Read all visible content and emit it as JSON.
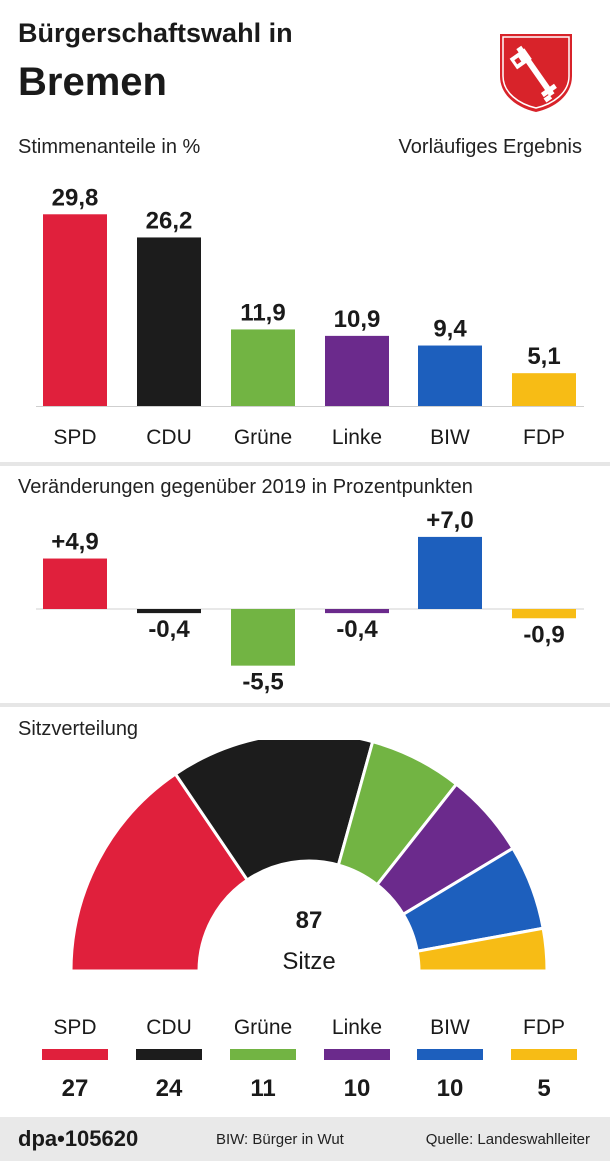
{
  "header": {
    "title_line1": "Bürgerschaftswahl in",
    "title_line2": "Bremen",
    "crest": "bremen-coat-of-arms-icon",
    "subtitle_left": "Stimmenanteile in %",
    "subtitle_right": "Vorläufiges Ergebnis"
  },
  "changes_title": "Veränderungen gegenüber 2019 in Prozentpunkten",
  "seats_title": "Sitzverteilung",
  "colors": {
    "SPD": "#e0203c",
    "CDU": "#1c1c1c",
    "Grüne": "#72b443",
    "Linke": "#6b2a8c",
    "BIW": "#1d5fbd",
    "FDP": "#f7bc15",
    "crest_red": "#d8232a"
  },
  "chart_data": [
    {
      "type": "bar",
      "title": "Stimmenanteile in %",
      "categories": [
        "SPD",
        "CDU",
        "Grüne",
        "Linke",
        "BIW",
        "FDP"
      ],
      "values": [
        29.8,
        26.2,
        11.9,
        10.9,
        9.4,
        5.1
      ],
      "value_labels": [
        "29,8",
        "26,2",
        "11,9",
        "10,9",
        "9,4",
        "5,1"
      ],
      "ylim": [
        0,
        30
      ]
    },
    {
      "type": "bar",
      "title": "Veränderungen gegenüber 2019 in Prozentpunkten",
      "categories": [
        "SPD",
        "CDU",
        "Grüne",
        "Linke",
        "BIW",
        "FDP"
      ],
      "values": [
        4.9,
        -0.4,
        -5.5,
        -0.4,
        7.0,
        -0.9
      ],
      "value_labels": [
        "+4,9",
        "-0,4",
        "-5,5",
        "-0,4",
        "+7,0",
        "-0,9"
      ]
    },
    {
      "type": "pie",
      "title": "Sitzverteilung",
      "style": "half-donut",
      "categories": [
        "SPD",
        "CDU",
        "Grüne",
        "Linke",
        "BIW",
        "FDP"
      ],
      "values": [
        27,
        24,
        11,
        10,
        10,
        5
      ],
      "total": 87,
      "total_label": "87",
      "total_unit": "Sitze"
    }
  ],
  "footer": {
    "agency": "dpa•105620",
    "biw_note": "BIW: Bürger in Wut",
    "source": "Quelle: Landeswahlleiter"
  }
}
